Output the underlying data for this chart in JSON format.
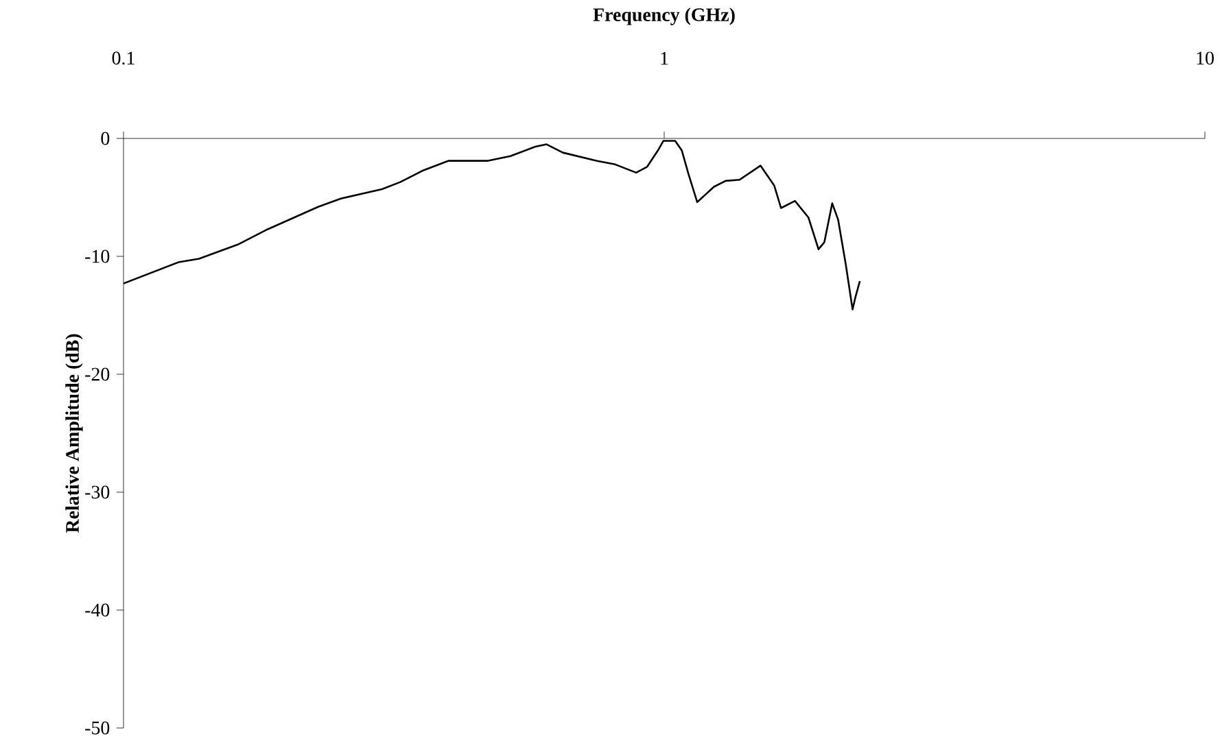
{
  "chart_data": {
    "type": "line",
    "xlabel": "Frequency (GHz)",
    "ylabel": "Relative Amplitude (dB)",
    "x": [
      0.1,
      0.1264,
      0.1379,
      0.1627,
      0.1848,
      0.2291,
      0.2523,
      0.3006,
      0.325,
      0.3587,
      0.3987,
      0.4707,
      0.5193,
      0.5774,
      0.606,
      0.6494,
      0.7514,
      0.8114,
      0.8875,
      0.9299,
      0.9773,
      0.9967,
      1.0478,
      1.0775,
      1.1087,
      1.151,
      1.236,
      1.2988,
      1.3791,
      1.5069,
      1.598,
      1.6445,
      1.7455,
      1.8482,
      1.9294,
      1.9783,
      2.0453,
      2.0978,
      2.1671,
      2.2305,
      2.2566,
      2.3007
    ],
    "values": [
      -12.3,
      -10.5,
      -10.2,
      -9.0,
      -7.7,
      -5.8,
      -5.1,
      -4.3,
      -3.7,
      -2.7,
      -1.9,
      -1.9,
      -1.5,
      -0.7,
      -0.5,
      -1.2,
      -1.9,
      -2.2,
      -2.9,
      -2.4,
      -0.9,
      -0.2,
      -0.2,
      -1.0,
      -3.0,
      -5.4,
      -4.1,
      -3.6,
      -3.5,
      -2.3,
      -4.0,
      -5.9,
      -5.3,
      -6.7,
      -9.4,
      -8.8,
      -5.5,
      -6.9,
      -10.7,
      -14.5,
      -13.5,
      -12.1
    ],
    "color": "#000000",
    "line_style": "solid",
    "marker": "none",
    "xlim": [
      0.1,
      10
    ],
    "ylim": [
      -50,
      0
    ],
    "xticks": [
      0.1,
      1,
      10
    ],
    "yticks": [
      -50,
      -40,
      -30,
      -20,
      -10,
      0
    ],
    "log": "x",
    "grid": false
  }
}
